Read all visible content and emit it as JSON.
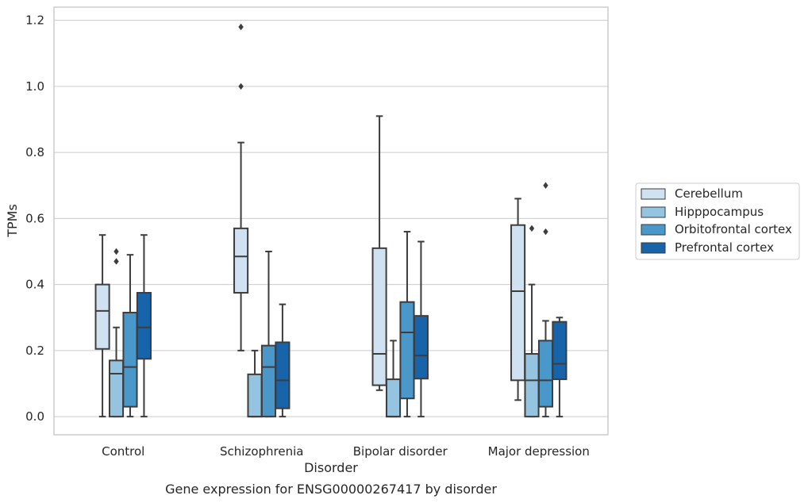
{
  "chart_data": {
    "type": "box",
    "title": "",
    "caption": "Gene expression for ENSG00000267417 by disorder",
    "xlabel": "Disorder",
    "ylabel": "TPMs",
    "ylim": [
      -0.055,
      1.24
    ],
    "yticks": [
      "0.0",
      "0.2",
      "0.4",
      "0.6",
      "0.8",
      "1.0",
      "1.2"
    ],
    "categories": [
      "Control",
      "Schizophrenia",
      "Bipolar disorder",
      "Major depression"
    ],
    "grid": true,
    "legend_position": "right",
    "series": [
      {
        "name": "Cerebellum",
        "color": "#d0e1f2",
        "boxes": [
          {
            "whislo": 0.0,
            "q1": 0.205,
            "med": 0.32,
            "q3": 0.4,
            "whishi": 0.55,
            "fliers": []
          },
          {
            "whislo": 0.2,
            "q1": 0.375,
            "med": 0.485,
            "q3": 0.57,
            "whishi": 0.83,
            "fliers": [
              1.0,
              1.18
            ]
          },
          {
            "whislo": 0.08,
            "q1": 0.095,
            "med": 0.19,
            "q3": 0.51,
            "whishi": 0.91,
            "fliers": []
          },
          {
            "whislo": 0.05,
            "q1": 0.11,
            "med": 0.38,
            "q3": 0.58,
            "whishi": 0.66,
            "fliers": []
          }
        ]
      },
      {
        "name": "Hipppocampus",
        "color": "#94c4df",
        "boxes": [
          {
            "whislo": 0.0,
            "q1": 0.0,
            "med": 0.13,
            "q3": 0.17,
            "whishi": 0.27,
            "fliers": [
              0.47,
              0.5
            ]
          },
          {
            "whislo": 0.0,
            "q1": 0.0,
            "med": 0.0,
            "q3": 0.128,
            "whishi": 0.2,
            "fliers": []
          },
          {
            "whislo": 0.0,
            "q1": 0.0,
            "med": 0.0,
            "q3": 0.113,
            "whishi": 0.23,
            "fliers": []
          },
          {
            "whislo": 0.0,
            "q1": 0.0,
            "med": 0.11,
            "q3": 0.19,
            "whishi": 0.4,
            "fliers": [
              0.57
            ]
          }
        ]
      },
      {
        "name": "Orbitofrontal cortex",
        "color": "#4a98c9",
        "boxes": [
          {
            "whislo": 0.0,
            "q1": 0.03,
            "med": 0.15,
            "q3": 0.315,
            "whishi": 0.49,
            "fliers": []
          },
          {
            "whislo": 0.0,
            "q1": 0.0,
            "med": 0.15,
            "q3": 0.215,
            "whishi": 0.5,
            "fliers": []
          },
          {
            "whislo": 0.0,
            "q1": 0.055,
            "med": 0.255,
            "q3": 0.347,
            "whishi": 0.56,
            "fliers": []
          },
          {
            "whislo": 0.0,
            "q1": 0.03,
            "med": 0.11,
            "q3": 0.23,
            "whishi": 0.29,
            "fliers": [
              0.56,
              0.7
            ]
          }
        ]
      },
      {
        "name": "Prefrontal cortex",
        "color": "#1764ab",
        "boxes": [
          {
            "whislo": 0.0,
            "q1": 0.175,
            "med": 0.27,
            "q3": 0.375,
            "whishi": 0.55,
            "fliers": []
          },
          {
            "whislo": 0.0,
            "q1": 0.025,
            "med": 0.11,
            "q3": 0.225,
            "whishi": 0.34,
            "fliers": []
          },
          {
            "whislo": 0.0,
            "q1": 0.115,
            "med": 0.185,
            "q3": 0.305,
            "whishi": 0.53,
            "fliers": []
          },
          {
            "whislo": 0.0,
            "q1": 0.113,
            "med": 0.16,
            "q3": 0.287,
            "whishi": 0.3,
            "fliers": []
          }
        ]
      }
    ]
  }
}
